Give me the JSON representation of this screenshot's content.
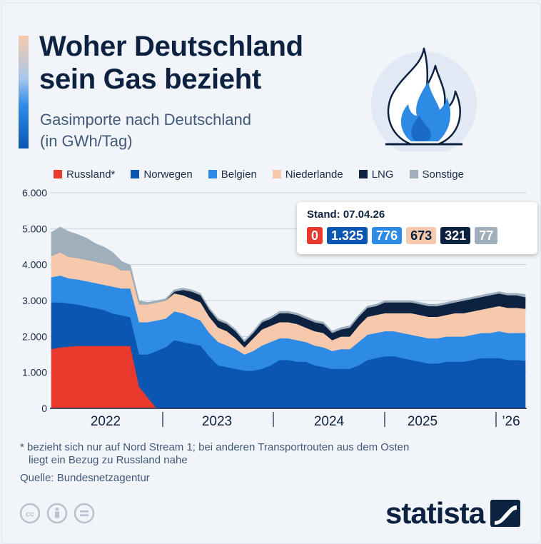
{
  "title_line1": "Woher Deutschland",
  "title_line2": "sein Gas bezieht",
  "subtitle_line1": "Gasimporte nach Deutschland",
  "subtitle_line2": "(in GWh/Tag)",
  "legend": [
    {
      "label": "Russland*",
      "color": "#e8392c"
    },
    {
      "label": "Norwegen",
      "color": "#0b56b0"
    },
    {
      "label": "Belgien",
      "color": "#2d8be6"
    },
    {
      "label": "Niederlande",
      "color": "#f6c9ac"
    },
    {
      "label": "LNG",
      "color": "#0d2240"
    },
    {
      "label": "Sonstige",
      "color": "#9fafbc"
    }
  ],
  "tooltip": {
    "title": "Stand: 07.04.26",
    "values": [
      {
        "label": "0",
        "color": "#e8392c"
      },
      {
        "label": "1.325",
        "color": "#0b56b0"
      },
      {
        "label": "776",
        "color": "#2d8be6"
      },
      {
        "label": "673",
        "color": "#f6c9ac"
      },
      {
        "label": "321",
        "color": "#0d2240"
      },
      {
        "label": "77",
        "color": "#9fafbc"
      }
    ]
  },
  "footnote_line1": "* bezieht sich nur auf Nord Stream 1; bei anderen Transportrouten aus dem Osten",
  "footnote_line2": "liegt ein Bezug zu Russland nahe",
  "source": "Quelle: Bundesnetzagentur",
  "brand": "statista",
  "icons": [
    "creative-commons-icon",
    "attribution-icon",
    "no-derivatives-icon",
    "flame-icon",
    "statista-logo-icon"
  ],
  "chart_data": {
    "type": "area",
    "stacked": true,
    "unit": "GWh/Tag",
    "y_ticks": [
      "6.000",
      "5.000",
      "4.000",
      "3.000",
      "2.000",
      "1.000",
      "0"
    ],
    "ylim": [
      0,
      6000
    ],
    "x_labels": [
      "2022",
      "2023",
      "2024",
      "2025",
      "’26"
    ],
    "x": [
      "2021-10",
      "2021-11",
      "2021-12",
      "2022-01",
      "2022-02",
      "2022-03",
      "2022-04",
      "2022-05",
      "2022-06",
      "2022-07",
      "2022-08",
      "2022-09",
      "2022-10",
      "2022-11",
      "2022-12",
      "2023-01",
      "2023-02",
      "2023-03",
      "2023-04",
      "2023-05",
      "2023-06",
      "2023-07",
      "2023-08",
      "2023-09",
      "2023-10",
      "2023-11",
      "2023-12",
      "2024-01",
      "2024-02",
      "2024-03",
      "2024-04",
      "2024-05",
      "2024-06",
      "2024-07",
      "2024-08",
      "2024-09",
      "2024-10",
      "2024-11",
      "2024-12",
      "2025-01",
      "2025-02",
      "2025-03",
      "2025-04",
      "2025-05",
      "2025-06",
      "2025-07",
      "2025-08",
      "2025-09",
      "2025-10",
      "2025-11",
      "2025-12",
      "2026-01",
      "2026-02",
      "2026-03",
      "2026-04"
    ],
    "series": [
      {
        "name": "Russland*",
        "color": "#e8392c",
        "values": [
          1650,
          1700,
          1720,
          1740,
          1740,
          1740,
          1740,
          1740,
          1740,
          1740,
          600,
          300,
          0,
          0,
          0,
          0,
          0,
          0,
          0,
          0,
          0,
          0,
          0,
          0,
          0,
          0,
          0,
          0,
          0,
          0,
          0,
          0,
          0,
          0,
          0,
          0,
          0,
          0,
          0,
          0,
          0,
          0,
          0,
          0,
          0,
          0,
          0,
          0,
          0,
          0,
          0,
          0,
          0,
          0,
          0
        ]
      },
      {
        "name": "Norwegen",
        "color": "#0b56b0",
        "values": [
          1300,
          1250,
          1200,
          1150,
          1100,
          1050,
          1000,
          900,
          850,
          800,
          900,
          1200,
          1600,
          1700,
          1900,
          1850,
          1800,
          1750,
          1450,
          1200,
          1150,
          1100,
          1050,
          1050,
          1100,
          1200,
          1350,
          1350,
          1300,
          1300,
          1200,
          1150,
          1100,
          1100,
          1100,
          1200,
          1350,
          1400,
          1450,
          1450,
          1400,
          1350,
          1300,
          1250,
          1250,
          1300,
          1300,
          1300,
          1350,
          1400,
          1400,
          1400,
          1350,
          1350,
          1325
        ]
      },
      {
        "name": "Belgien",
        "color": "#2d8be6",
        "values": [
          700,
          750,
          700,
          700,
          700,
          700,
          700,
          750,
          750,
          800,
          900,
          900,
          850,
          800,
          800,
          800,
          750,
          700,
          650,
          650,
          600,
          550,
          450,
          550,
          650,
          650,
          600,
          600,
          600,
          550,
          550,
          550,
          500,
          550,
          550,
          650,
          700,
          700,
          700,
          700,
          700,
          700,
          700,
          700,
          700,
          700,
          700,
          700,
          700,
          700,
          700,
          750,
          750,
          750,
          776
        ]
      },
      {
        "name": "Niederlande",
        "color": "#f6c9ac",
        "values": [
          600,
          650,
          600,
          600,
          600,
          600,
          600,
          600,
          500,
          500,
          500,
          500,
          500,
          500,
          500,
          500,
          500,
          500,
          450,
          400,
          400,
          300,
          200,
          350,
          450,
          450,
          450,
          450,
          450,
          400,
          400,
          400,
          300,
          350,
          350,
          450,
          500,
          500,
          500,
          500,
          550,
          600,
          600,
          600,
          600,
          600,
          650,
          650,
          650,
          650,
          700,
          700,
          700,
          700,
          673
        ]
      },
      {
        "name": "LNG",
        "color": "#0d2240",
        "values": [
          0,
          0,
          0,
          0,
          0,
          0,
          0,
          0,
          0,
          0,
          0,
          0,
          0,
          0,
          50,
          150,
          200,
          200,
          200,
          200,
          200,
          200,
          150,
          150,
          200,
          200,
          250,
          250,
          250,
          250,
          250,
          250,
          200,
          200,
          250,
          250,
          250,
          250,
          300,
          300,
          300,
          300,
          300,
          300,
          300,
          300,
          300,
          350,
          350,
          350,
          350,
          350,
          350,
          350,
          321
        ]
      },
      {
        "name": "Sonstige",
        "color": "#9fafbc",
        "values": [
          650,
          700,
          700,
          650,
          600,
          500,
          450,
          350,
          250,
          150,
          100,
          50,
          50,
          50,
          50,
          50,
          50,
          50,
          50,
          50,
          50,
          50,
          50,
          50,
          50,
          50,
          50,
          50,
          50,
          50,
          50,
          50,
          50,
          50,
          50,
          50,
          50,
          50,
          50,
          50,
          50,
          50,
          50,
          50,
          50,
          50,
          50,
          50,
          50,
          50,
          50,
          50,
          50,
          50,
          77
        ]
      }
    ]
  }
}
